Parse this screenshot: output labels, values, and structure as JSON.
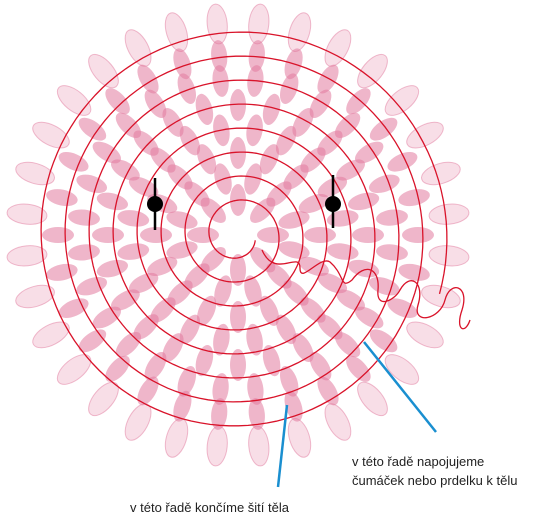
{
  "annotations": [
    {
      "lines": [
        "v této řadě napojujeme",
        "čumáček nebo prdelku k tělu"
      ]
    },
    {
      "lines": [
        "v této řadě končíme šití těla"
      ]
    }
  ]
}
